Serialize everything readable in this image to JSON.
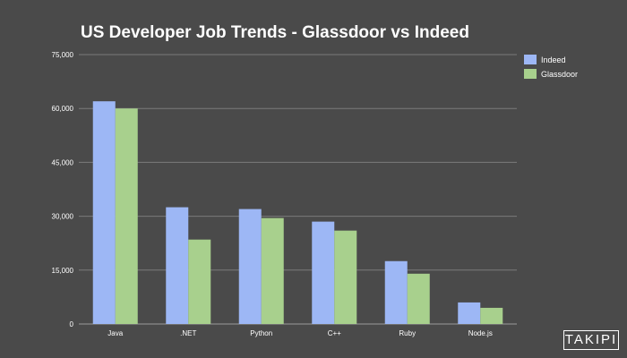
{
  "chart_data": {
    "type": "bar",
    "title": "US Developer Job Trends - Glassdoor vs Indeed",
    "xlabel": "",
    "ylabel": "",
    "categories": [
      "Java",
      ".NET",
      "Python",
      "C++",
      "Ruby",
      "Node.js"
    ],
    "series": [
      {
        "name": "Indeed",
        "color": "#9db7f5",
        "values": [
          62000,
          32500,
          32000,
          28500,
          17500,
          6000
        ]
      },
      {
        "name": "Glassdoor",
        "color": "#a8d08d",
        "values": [
          60000,
          23500,
          29500,
          26000,
          14000,
          4500
        ]
      }
    ],
    "ylim": [
      0,
      75000
    ],
    "yticks": [
      "0",
      "15,000",
      "30,000",
      "45,000",
      "60,000",
      "75,000"
    ],
    "ytick_values": [
      0,
      15000,
      30000,
      45000,
      60000,
      75000
    ],
    "grid": true,
    "legend_position": "top-right"
  },
  "watermark": "TAKIPI",
  "colors": {
    "background": "#4a4a4a",
    "gridline": "#7a7a7a",
    "text": "#ffffff"
  }
}
